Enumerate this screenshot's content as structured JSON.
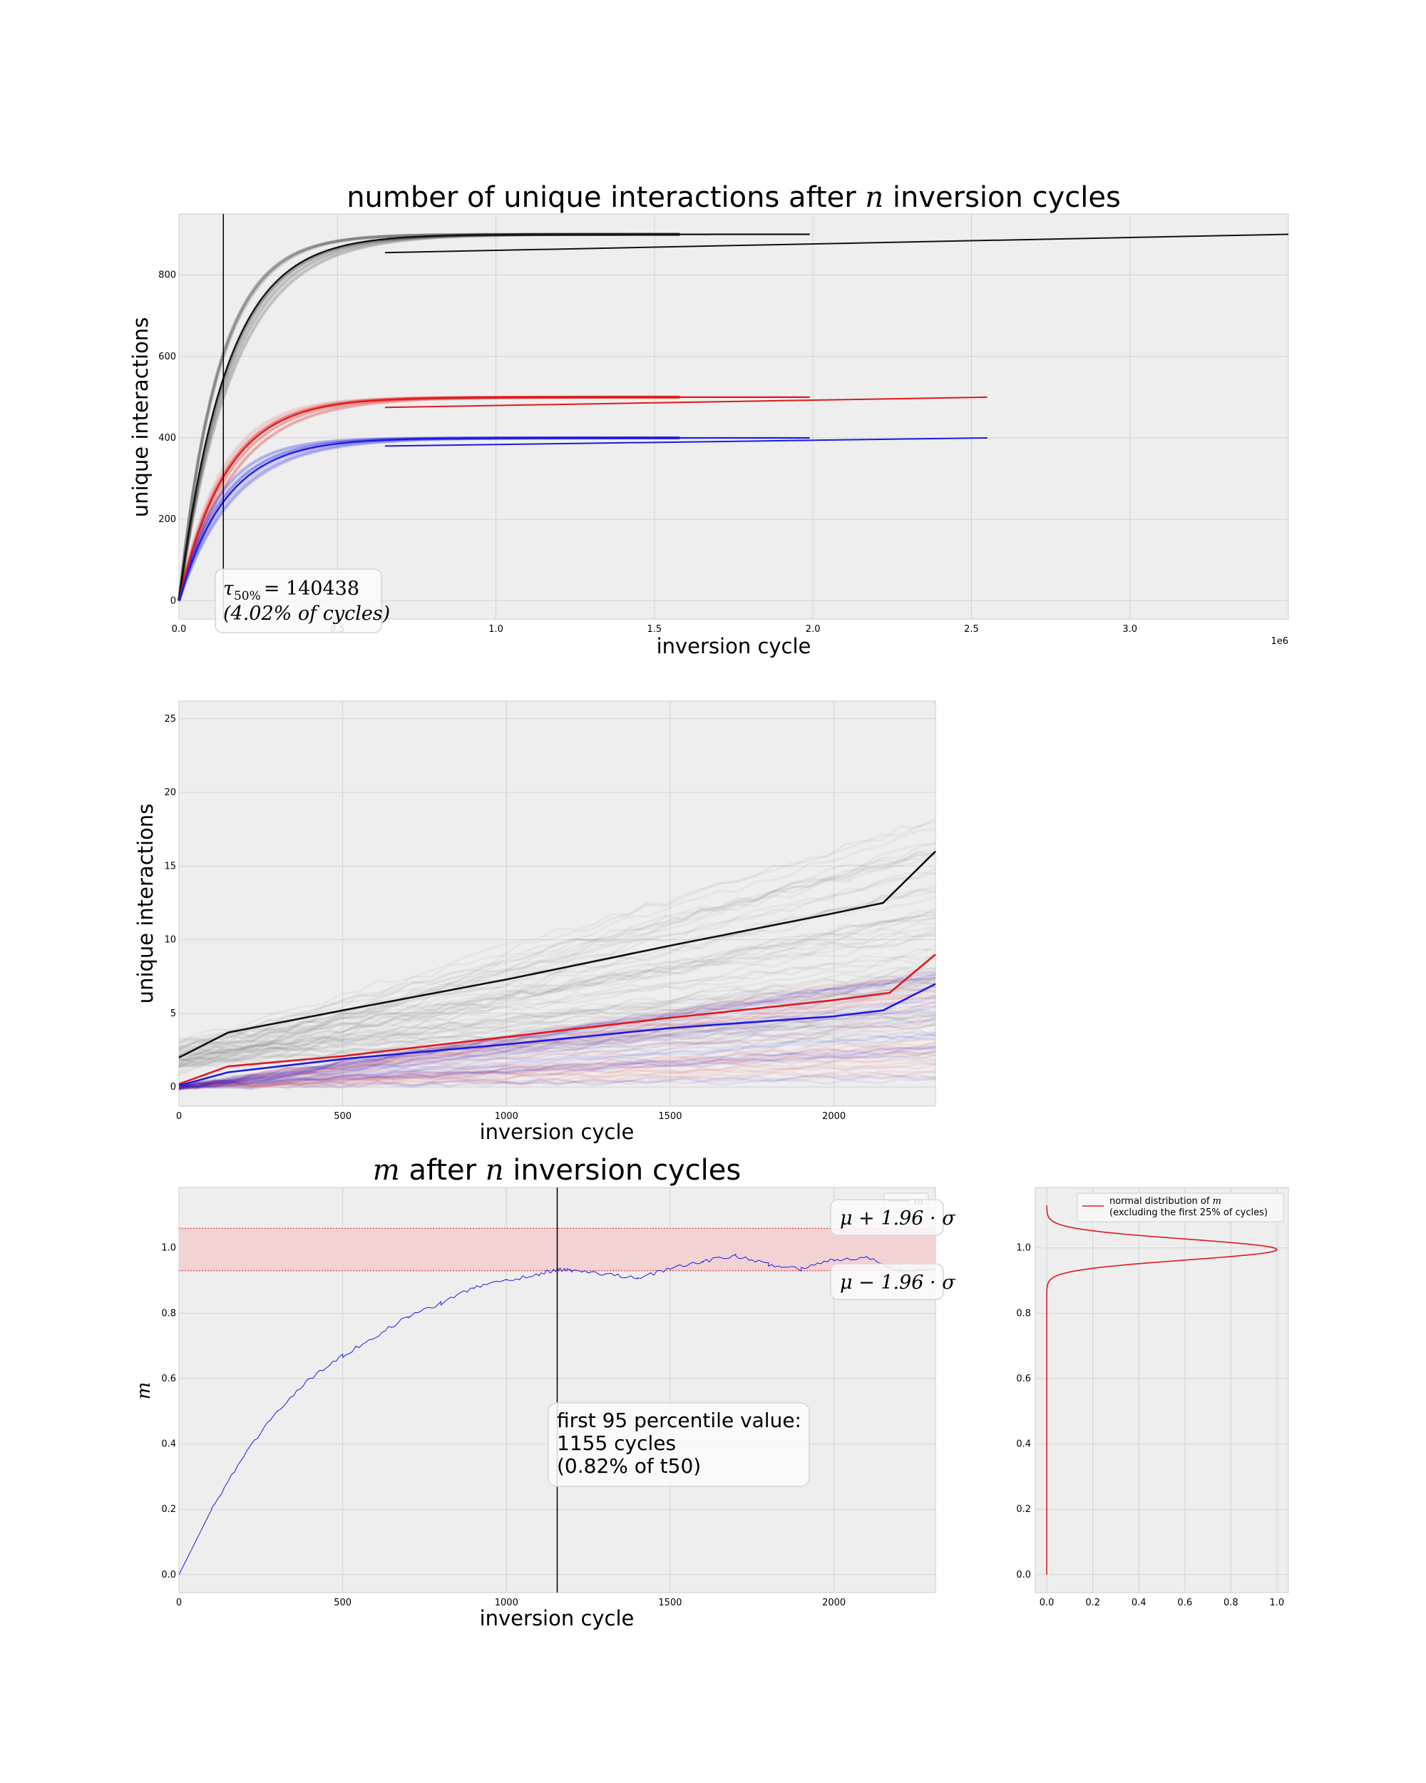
{
  "colors": {
    "black": "#111111",
    "red": "#e0191c",
    "blue": "#1a1ae6",
    "band": "#f2cccc",
    "panel": "#eeeeee",
    "grid": "#d2d2d2"
  },
  "chart_data": [
    {
      "type": "line",
      "title_prefix": "number of unique interactions after ",
      "title_var": "n",
      "title_suffix": " inversion cycles",
      "xlabel": "inversion cycle",
      "ylabel": "unique interactions",
      "x_multiplier_label": "1e6",
      "xlim": [
        0,
        3.5
      ],
      "ylim": [
        -45,
        950
      ],
      "xticks": [
        0.0,
        0.5,
        1.0,
        1.5,
        2.0,
        2.5,
        3.0
      ],
      "xtick_labels": [
        "0.0",
        "0.5",
        "1.0",
        "1.5",
        "2.0",
        "2.5",
        "3.0"
      ],
      "yticks": [
        0,
        200,
        400,
        600,
        800
      ],
      "vline_x": 0.14,
      "annotation": {
        "symbol": "τ",
        "subscript": "50%",
        "value": "= 140438",
        "line2": "(4.02% of cycles)"
      },
      "series": [
        {
          "color": "black",
          "curve": {
            "asymptote": 900,
            "tau": 0.15
          },
          "tail": {
            "x": [
              0.65,
              3.5
            ],
            "y": [
              855,
              900
            ]
          }
        },
        {
          "color": "red",
          "curve": {
            "asymptote": 500,
            "tau": 0.15
          },
          "tail": {
            "x": [
              0.65,
              2.55
            ],
            "y": [
              475,
              500
            ]
          }
        },
        {
          "color": "blue",
          "curve": {
            "asymptote": 400,
            "tau": 0.15
          },
          "tail": {
            "x": [
              0.65,
              2.55
            ],
            "y": [
              380,
              400
            ]
          }
        }
      ]
    },
    {
      "type": "line",
      "xlabel": "inversion cycle",
      "ylabel": "unique interactions",
      "xlim": [
        0,
        2310
      ],
      "ylim": [
        -1.3,
        26.2
      ],
      "xticks": [
        0,
        500,
        1000,
        1500,
        2000
      ],
      "yticks": [
        0,
        5,
        10,
        15,
        20,
        25
      ],
      "series": [
        {
          "color": "black",
          "x": [
            0,
            150,
            500,
            1000,
            1500,
            2000,
            2150,
            2310
          ],
          "y": [
            2,
            3.7,
            5.2,
            7.3,
            9.6,
            11.8,
            12.5,
            16
          ]
        },
        {
          "color": "red",
          "x": [
            0,
            150,
            500,
            1000,
            1500,
            2000,
            2170,
            2310
          ],
          "y": [
            0.2,
            1.4,
            2.1,
            3.4,
            4.7,
            5.9,
            6.4,
            9
          ]
        },
        {
          "color": "blue",
          "x": [
            0,
            150,
            500,
            1000,
            1500,
            2000,
            2150,
            2310
          ],
          "y": [
            0.1,
            1,
            1.9,
            2.9,
            4,
            4.8,
            5.2,
            7
          ]
        }
      ]
    },
    {
      "type": "line",
      "title_var1": "m",
      "title_mid": " after ",
      "title_var2": "n",
      "title_suffix": " inversion cycles",
      "xlabel": "inversion cycle",
      "ylabel": "m",
      "xlim": [
        0,
        2310
      ],
      "ylim": [
        -0.055,
        1.185
      ],
      "xticks": [
        0,
        500,
        1000,
        1500,
        2000
      ],
      "yticks": [
        0.0,
        0.2,
        0.4,
        0.6,
        0.8,
        1.0
      ],
      "ytick_labels": [
        "0.0",
        "0.2",
        "0.4",
        "0.6",
        "0.8",
        "1.0"
      ],
      "band": [
        0.93,
        1.06
      ],
      "vline_x": 1155,
      "legend": "m",
      "upper_label": "μ + 1.96 · σ",
      "lower_label": "μ − 1.96 · σ",
      "annotation_lines": [
        "first 95 percentile value:",
        "1155 cycles",
        "(0.82% of t50)"
      ],
      "series": [
        {
          "name": "m",
          "color": "blue",
          "x": [
            0,
            100,
            200,
            300,
            400,
            500,
            600,
            700,
            800,
            900,
            1000,
            1100,
            1155,
            1200,
            1300,
            1400,
            1500,
            1600,
            1700,
            1800,
            1900,
            2000,
            2100,
            2200,
            2310
          ],
          "y": [
            0.0,
            0.2,
            0.37,
            0.5,
            0.6,
            0.67,
            0.73,
            0.79,
            0.83,
            0.88,
            0.9,
            0.92,
            0.935,
            0.93,
            0.92,
            0.91,
            0.935,
            0.96,
            0.975,
            0.95,
            0.935,
            0.965,
            0.97,
            0.93,
            0.935
          ]
        }
      ]
    },
    {
      "type": "line",
      "xlim": [
        -0.05,
        1.05
      ],
      "ylim": [
        -0.055,
        1.185
      ],
      "xticks": [
        0.0,
        0.2,
        0.4,
        0.6,
        0.8,
        1.0
      ],
      "xtick_labels": [
        "0.0",
        "0.2",
        "0.4",
        "0.6",
        "0.8",
        "1.0"
      ],
      "yticks": [
        0.0,
        0.2,
        0.4,
        0.6,
        0.8,
        1.0
      ],
      "ytick_labels": [
        "0.0",
        "0.2",
        "0.4",
        "0.6",
        "0.8",
        "1.0"
      ],
      "legend_prefix": "normal distribution of ",
      "legend_var": "m",
      "legend_line2": "(excluding the first 25% of cycles)",
      "series": [
        {
          "color": "red",
          "distribution": {
            "mean": 0.995,
            "sd": 0.032
          },
          "y_range": [
            0.0,
            1.13
          ]
        }
      ]
    }
  ]
}
